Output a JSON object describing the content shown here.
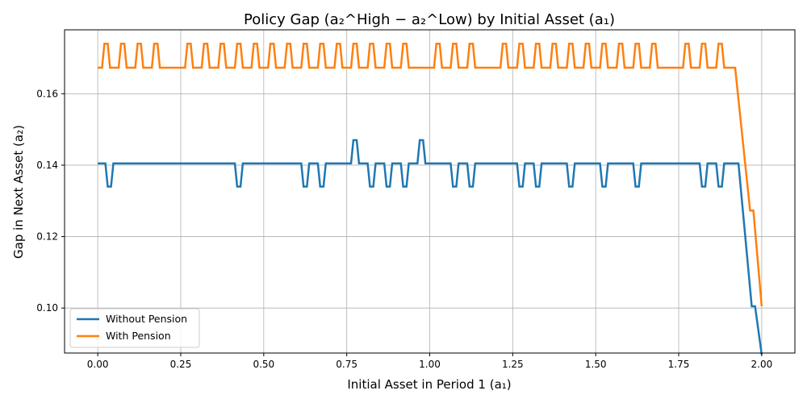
{
  "chart_data": {
    "type": "line",
    "title": "Policy Gap (a₂^High − a₂^Low) by Initial Asset (a₁)",
    "xlabel": "Initial Asset in Period 1 (a₁)",
    "ylabel": "Gap in Next Asset (a₂)",
    "xlim": [
      -0.1,
      2.1
    ],
    "ylim": [
      0.0874,
      0.1779
    ],
    "xticks": [
      0.0,
      0.25,
      0.5,
      0.75,
      1.0,
      1.25,
      1.5,
      1.75,
      2.0
    ],
    "xtick_labels": [
      "0.00",
      "0.25",
      "0.50",
      "0.75",
      "1.00",
      "1.25",
      "1.50",
      "1.75",
      "2.00"
    ],
    "yticks": [
      0.1,
      0.12,
      0.14,
      0.16
    ],
    "ytick_labels": [
      "0.10",
      "0.12",
      "0.14",
      "0.16"
    ],
    "grid": true,
    "legend_position": "lower-left",
    "colors": {
      "Without Pension": "#1f77b4",
      "With Pension": "#ff7f0e"
    },
    "series": [
      {
        "name": "Without Pension",
        "baseline": 0.1405,
        "dips": [
          {
            "x": 0.035,
            "y": 0.134
          },
          {
            "x": 0.425,
            "y": 0.134
          },
          {
            "x": 0.625,
            "y": 0.134
          },
          {
            "x": 0.675,
            "y": 0.134
          },
          {
            "x": 0.825,
            "y": 0.134
          },
          {
            "x": 0.875,
            "y": 0.134
          },
          {
            "x": 0.925,
            "y": 0.134
          },
          {
            "x": 1.075,
            "y": 0.134
          },
          {
            "x": 1.125,
            "y": 0.134
          },
          {
            "x": 1.275,
            "y": 0.134
          },
          {
            "x": 1.325,
            "y": 0.134
          },
          {
            "x": 1.425,
            "y": 0.134
          },
          {
            "x": 1.525,
            "y": 0.134
          },
          {
            "x": 1.625,
            "y": 0.134
          },
          {
            "x": 1.825,
            "y": 0.134
          },
          {
            "x": 1.875,
            "y": 0.134
          }
        ],
        "peaks": [
          {
            "x": 0.775,
            "y": 0.147
          },
          {
            "x": 0.975,
            "y": 0.147
          }
        ],
        "tail": [
          {
            "x": 1.93,
            "y": 0.1405
          },
          {
            "x": 1.97,
            "y": 0.1005
          },
          {
            "x": 1.98,
            "y": 0.1005
          },
          {
            "x": 2.0,
            "y": 0.087
          }
        ]
      },
      {
        "name": "With Pension",
        "baseline": 0.1673,
        "peaks": [
          {
            "x": 0.025,
            "y": 0.174
          },
          {
            "x": 0.075,
            "y": 0.174
          },
          {
            "x": 0.125,
            "y": 0.174
          },
          {
            "x": 0.175,
            "y": 0.174
          },
          {
            "x": 0.275,
            "y": 0.174
          },
          {
            "x": 0.325,
            "y": 0.174
          },
          {
            "x": 0.375,
            "y": 0.174
          },
          {
            "x": 0.425,
            "y": 0.174
          },
          {
            "x": 0.475,
            "y": 0.174
          },
          {
            "x": 0.525,
            "y": 0.174
          },
          {
            "x": 0.575,
            "y": 0.174
          },
          {
            "x": 0.625,
            "y": 0.174
          },
          {
            "x": 0.675,
            "y": 0.174
          },
          {
            "x": 0.725,
            "y": 0.174
          },
          {
            "x": 0.775,
            "y": 0.174
          },
          {
            "x": 0.825,
            "y": 0.174
          },
          {
            "x": 0.875,
            "y": 0.174
          },
          {
            "x": 0.925,
            "y": 0.174
          },
          {
            "x": 1.025,
            "y": 0.174
          },
          {
            "x": 1.075,
            "y": 0.174
          },
          {
            "x": 1.125,
            "y": 0.174
          },
          {
            "x": 1.225,
            "y": 0.174
          },
          {
            "x": 1.275,
            "y": 0.174
          },
          {
            "x": 1.325,
            "y": 0.174
          },
          {
            "x": 1.375,
            "y": 0.174
          },
          {
            "x": 1.425,
            "y": 0.174
          },
          {
            "x": 1.475,
            "y": 0.174
          },
          {
            "x": 1.525,
            "y": 0.174
          },
          {
            "x": 1.575,
            "y": 0.174
          },
          {
            "x": 1.625,
            "y": 0.174
          },
          {
            "x": 1.675,
            "y": 0.174
          },
          {
            "x": 1.775,
            "y": 0.174
          },
          {
            "x": 1.825,
            "y": 0.174
          },
          {
            "x": 1.875,
            "y": 0.174
          }
        ],
        "tail": [
          {
            "x": 1.92,
            "y": 0.1673
          },
          {
            "x": 1.965,
            "y": 0.1273
          },
          {
            "x": 1.975,
            "y": 0.1273
          },
          {
            "x": 2.0,
            "y": 0.1005
          }
        ]
      }
    ]
  }
}
